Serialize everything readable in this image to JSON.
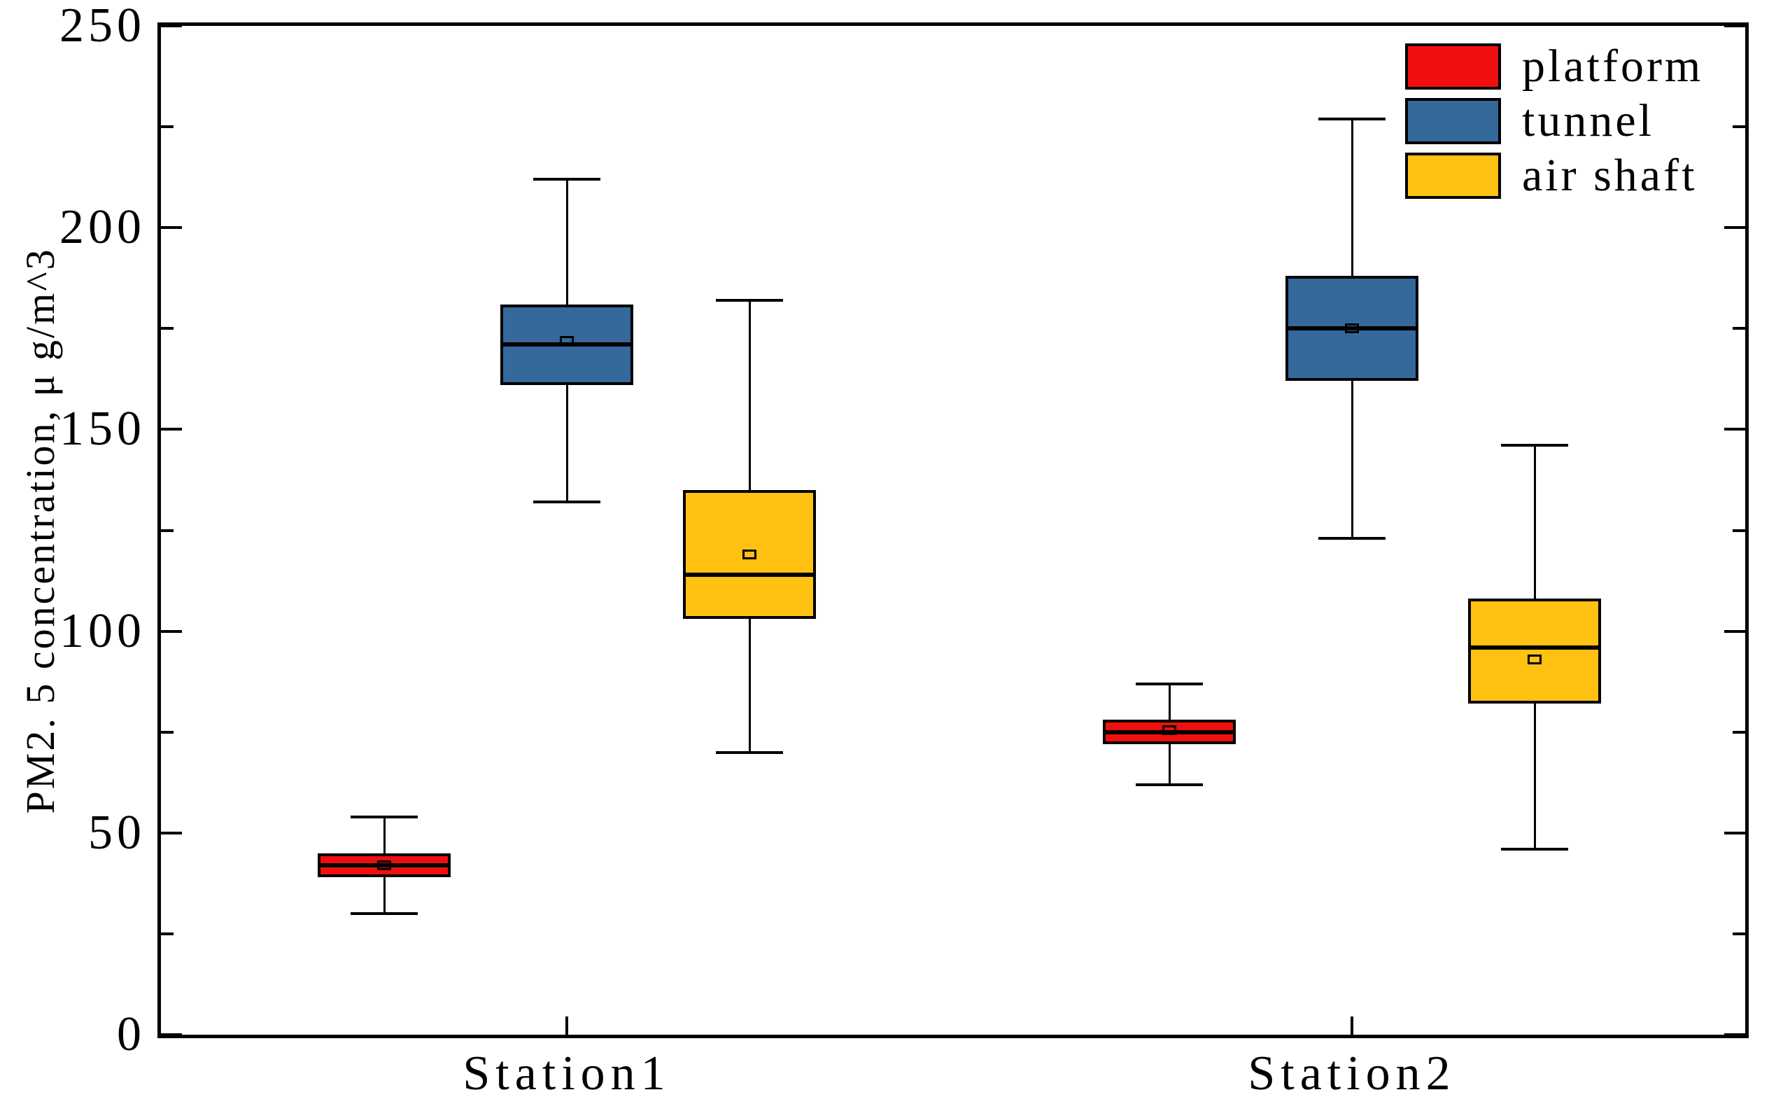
{
  "chart_data": {
    "type": "box",
    "title": "",
    "xlabel": "",
    "ylabel": "PM2. 5 concentration, μ g/m^3",
    "ylim": [
      0,
      250
    ],
    "ytick_labels": [
      "0",
      "50",
      "100",
      "150",
      "200",
      "250"
    ],
    "yticks_major": [
      0,
      50,
      100,
      150,
      200,
      250
    ],
    "yticks_minor": [
      25,
      75,
      125,
      175,
      225
    ],
    "categories": [
      "Station1",
      "Station2"
    ],
    "grid": false,
    "legend_position": "top-right",
    "axis_color": "#000000",
    "series": [
      {
        "name": "platform",
        "color": "#f00f0f",
        "boxes": [
          {
            "station": "Station1",
            "whisker_low": 30,
            "q1": 39,
            "median": 42,
            "mean": 42,
            "q3": 45,
            "whisker_high": 54
          },
          {
            "station": "Station2",
            "whisker_low": 62,
            "q1": 72,
            "median": 75,
            "mean": 75.5,
            "q3": 78,
            "whisker_high": 87
          }
        ]
      },
      {
        "name": "tunnel",
        "color": "#35689b",
        "boxes": [
          {
            "station": "Station1",
            "whisker_low": 132,
            "q1": 161,
            "median": 171,
            "mean": 172,
            "q3": 181,
            "whisker_high": 212
          },
          {
            "station": "Station2",
            "whisker_low": 123,
            "q1": 162,
            "median": 175,
            "mean": 175,
            "q3": 188,
            "whisker_high": 227
          }
        ]
      },
      {
        "name": "air shaft",
        "color": "#ffc112",
        "boxes": [
          {
            "station": "Station1",
            "whisker_low": 70,
            "q1": 103,
            "median": 114,
            "mean": 119,
            "q3": 135,
            "whisker_high": 182
          },
          {
            "station": "Station2",
            "whisker_low": 46,
            "q1": 82,
            "median": 96,
            "mean": 93,
            "q3": 108,
            "whisker_high": 146
          }
        ]
      }
    ],
    "legend": [
      "platform",
      "tunnel",
      "air shaft"
    ]
  }
}
